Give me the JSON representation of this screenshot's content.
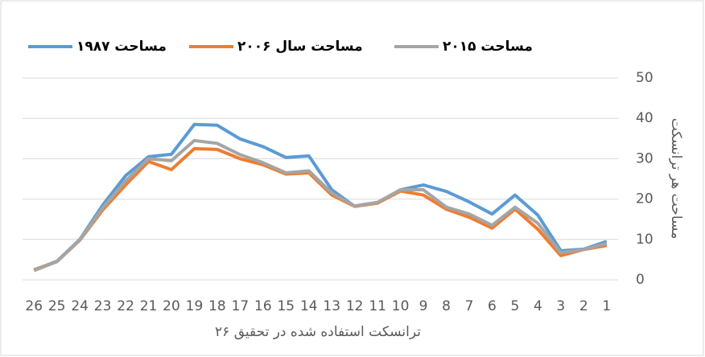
{
  "chart_data": {
    "type": "line",
    "x_title": "۲۶ ترانسکت استفاده شده در تحقیق",
    "y_title": "مساحت هر ترانسکت",
    "categories": [
      "1",
      "2",
      "3",
      "4",
      "5",
      "6",
      "7",
      "8",
      "9",
      "10",
      "11",
      "12",
      "13",
      "14",
      "15",
      "16",
      "17",
      "18",
      "19",
      "20",
      "21",
      "22",
      "23",
      "24",
      "25",
      "26"
    ],
    "x_reversed": true,
    "series": [
      {
        "name": "مساحت ۱۹۸۷",
        "color": "#5b9bd5",
        "values": [
          9.5,
          7.6,
          7.2,
          16,
          21,
          16.3,
          19.3,
          21.9,
          23.5,
          22.3,
          19.1,
          18.2,
          22.3,
          30.7,
          30.3,
          33,
          34.9,
          38.3,
          38.5,
          31.1,
          30.5,
          25.8,
          18.5,
          10,
          4.6,
          2.4
        ]
      },
      {
        "name": "مساحت سال ۲۰۰۶",
        "color": "#ed7d31",
        "values": [
          8.5,
          7.5,
          6,
          12.5,
          17.5,
          12.8,
          15.5,
          17.5,
          21,
          22,
          19,
          18.2,
          21,
          26.5,
          26.2,
          28.5,
          30,
          32.3,
          32.5,
          27.3,
          29.3,
          23.5,
          17.3,
          9.8,
          4.5,
          2.5
        ]
      },
      {
        "name": "مساحت ۲۰۱۵",
        "color": "#a5a5a5",
        "values": [
          9,
          7.5,
          6.7,
          14,
          18,
          13.5,
          16.3,
          18,
          22.3,
          22.3,
          19.2,
          18.3,
          21.5,
          27,
          26.5,
          29,
          31,
          33.8,
          34.5,
          29.5,
          30,
          24.5,
          17.8,
          9.9,
          4.5,
          2.3
        ]
      }
    ],
    "ylim": [
      0,
      50
    ],
    "yticks": [
      0,
      10,
      20,
      30,
      40,
      50
    ],
    "y_axis_side": "right",
    "grid": true,
    "legend": "top"
  }
}
